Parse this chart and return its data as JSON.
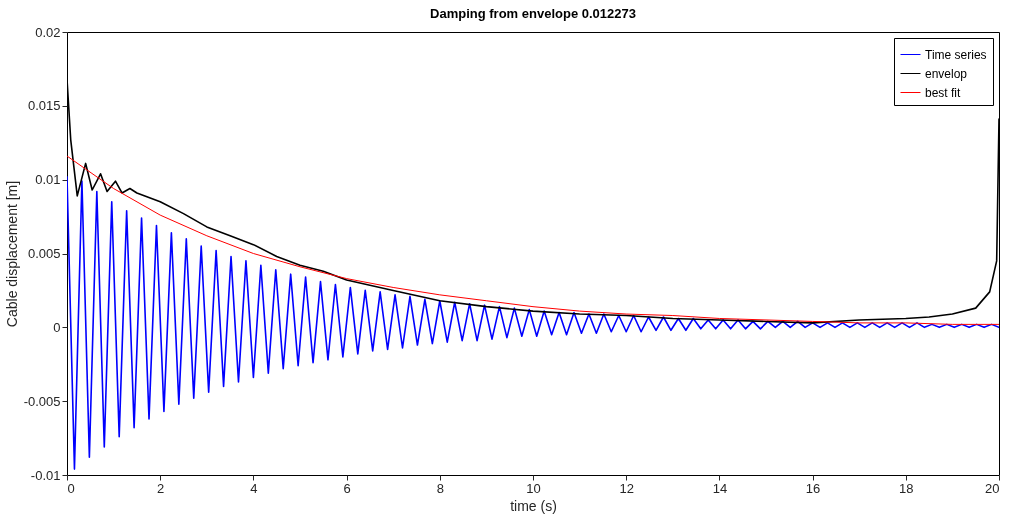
{
  "chart_data": {
    "type": "line",
    "title": "Damping from envelope 0.012273",
    "xlabel": "time (s)",
    "ylabel": "Cable displacement [m]",
    "xlim": [
      0,
      20
    ],
    "xticks": [
      0,
      2,
      4,
      6,
      8,
      10,
      12,
      14,
      16,
      18,
      20
    ],
    "ylim": [
      -0.01,
      0.02
    ],
    "yticks": [
      -0.01,
      -0.005,
      0,
      0.005,
      0.01,
      0.015,
      0.02
    ],
    "grid": false,
    "legend": "top right",
    "line_style": "solid",
    "marker": "none",
    "series": [
      {
        "name": "Time series",
        "color": "#0000ff",
        "x": [
          0,
          0.16,
          0.32,
          0.48,
          0.64,
          0.8,
          0.96,
          1.12,
          1.28,
          1.44,
          1.6,
          1.76,
          1.92,
          2.08,
          2.24,
          2.4,
          2.56,
          2.72,
          2.88,
          3.04,
          3.2,
          3.36,
          3.52,
          3.68,
          3.84,
          4,
          4.16,
          4.32,
          4.48,
          4.64,
          4.8,
          4.96,
          5.12,
          5.28,
          5.44,
          5.6,
          5.76,
          5.92,
          6.08,
          6.24,
          6.4,
          6.56,
          6.72,
          6.88,
          7.04,
          7.2,
          7.36,
          7.52,
          7.68,
          7.84,
          8,
          8.16,
          8.32,
          8.48,
          8.64,
          8.8,
          8.96,
          9.12,
          9.28,
          9.44,
          9.6,
          9.76,
          9.92,
          10.08,
          10.24,
          10.4,
          10.56,
          10.72,
          10.88,
          11.04,
          11.2,
          11.36,
          11.52,
          11.68,
          11.84,
          12,
          12.16,
          12.32,
          12.48,
          12.64,
          12.8,
          12.96,
          13.12,
          13.28,
          13.44,
          13.6,
          13.76,
          13.92,
          14.08,
          14.24,
          14.4,
          14.56,
          14.72,
          14.88,
          15.04,
          15.2,
          15.36,
          15.52,
          15.68,
          15.84,
          16,
          16.16,
          16.32,
          16.48,
          16.64,
          16.8,
          16.96,
          17.12,
          17.28,
          17.44,
          17.6,
          17.76,
          17.92,
          18.08,
          18.24,
          18.4,
          18.56,
          18.72,
          18.88,
          19.04,
          19.2,
          19.36,
          19.52,
          19.68,
          19.84,
          20
        ],
        "values": [
          0.0102,
          -0.0096,
          0.0099,
          -0.0088,
          0.0092,
          -0.0081,
          0.0085,
          -0.0074,
          0.0079,
          -0.0068,
          0.0074,
          -0.0062,
          0.0069,
          -0.0057,
          0.0064,
          -0.0052,
          0.006,
          -0.0048,
          0.0055,
          -0.0044,
          0.0052,
          -0.004,
          0.0048,
          -0.0037,
          0.0045,
          -0.0034,
          0.0042,
          -0.0031,
          0.0039,
          -0.0028,
          0.0036,
          -0.0026,
          0.0034,
          -0.0024,
          0.0031,
          -0.0022,
          0.0029,
          -0.002,
          0.0027,
          -0.0018,
          0.0025,
          -0.0016,
          0.0024,
          -0.0015,
          0.0022,
          -0.0014,
          0.0021,
          -0.0012,
          0.0019,
          -0.0011,
          0.0018,
          -0.001,
          0.0017,
          -0.0009,
          0.0016,
          -0.0009,
          0.0015,
          -0.0008,
          0.0014,
          -0.0007,
          0.0013,
          -0.0006,
          0.0012,
          -0.0006,
          0.0011,
          -0.0005,
          0.001,
          -0.0005,
          0.001,
          -0.0004,
          0.0009,
          -0.0004,
          0.0009,
          -0.0003,
          0.0008,
          -0.0003,
          0.0008,
          -0.0003,
          0.0007,
          -0.0002,
          0.0007,
          -0.0002,
          0.0006,
          -0.0002,
          0.0006,
          -0.0001,
          0.0005,
          -0.0001,
          0.0005,
          -0.0001,
          0.0005,
          -0.0001,
          0.0004,
          -0.0001,
          0.0004,
          0,
          0.0004,
          0,
          0.0004,
          0,
          0.0003,
          0,
          0.0003,
          0,
          0.0003,
          0,
          0.0003,
          0,
          0.0003,
          0,
          0.0003,
          0,
          0.0003,
          0,
          0.0003,
          0,
          0.0002,
          0,
          0.0002,
          0,
          0.0002,
          0,
          0.0002,
          0,
          0.0002,
          0
        ]
      },
      {
        "name": "envelop",
        "color": "#000000",
        "x": [
          0,
          0.08,
          0.22,
          0.4,
          0.54,
          0.72,
          0.86,
          1.04,
          1.18,
          1.35,
          1.5,
          2,
          2.5,
          3,
          3.5,
          4,
          4.5,
          5,
          5.5,
          6,
          7,
          8,
          9,
          10,
          11,
          12,
          13,
          14,
          15,
          16,
          17,
          18,
          18.5,
          19,
          19.5,
          19.8,
          19.95,
          20
        ],
        "values": [
          0.0168,
          0.0127,
          0.0089,
          0.0111,
          0.0093,
          0.0104,
          0.0092,
          0.0099,
          0.0091,
          0.0094,
          0.0091,
          0.0085,
          0.0077,
          0.0068,
          0.0062,
          0.0056,
          0.0048,
          0.0042,
          0.0038,
          0.0032,
          0.0025,
          0.0018,
          0.0014,
          0.0011,
          0.0009,
          0.0008,
          0.0006,
          0.0005,
          0.0004,
          0.0003,
          0.0005,
          0.0006,
          0.0007,
          0.0009,
          0.0013,
          0.0024,
          0.0045,
          0.0141
        ]
      },
      {
        "name": "best fit",
        "color": "#ff0000",
        "x": [
          0,
          1,
          2,
          3,
          4,
          5,
          6,
          7,
          8,
          9,
          10,
          11,
          12,
          13,
          14,
          15,
          16,
          17,
          18,
          19,
          20
        ],
        "values": [
          0.0116,
          0.0094,
          0.0076,
          0.0062,
          0.005,
          0.0041,
          0.0033,
          0.0027,
          0.0022,
          0.0018,
          0.0014,
          0.0011,
          0.0009,
          0.0008,
          0.0006,
          0.0005,
          0.0004,
          0.0003,
          0.0003,
          0.0002,
          0.0002
        ]
      }
    ]
  }
}
